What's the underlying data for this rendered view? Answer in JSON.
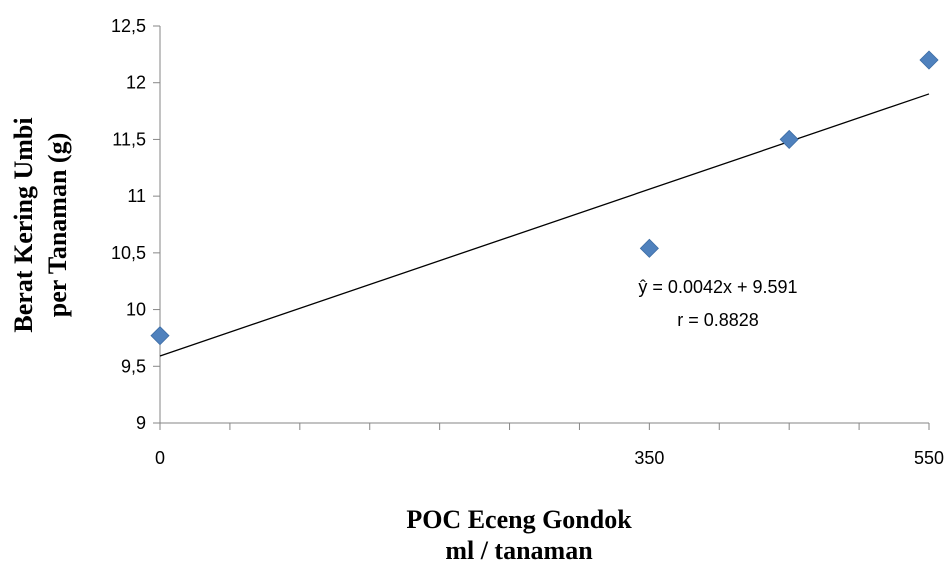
{
  "chart_data": {
    "type": "scatter",
    "xlabel": [
      "POC Eceng Gondok",
      "ml / tanaman"
    ],
    "ylabel": [
      "Berat Kering Umbi",
      "per Tanaman (g)"
    ],
    "xlim": [
      0,
      550
    ],
    "ylim": [
      9,
      12.5
    ],
    "x_tick_labels": [
      {
        "value": 0,
        "label": "0"
      },
      {
        "value": 350,
        "label": "350"
      },
      {
        "value": 550,
        "label": "550"
      }
    ],
    "x_minor_ticks": [
      50,
      100,
      150,
      200,
      250,
      300,
      400,
      450,
      500
    ],
    "y_ticks": [
      {
        "value": 9,
        "label": "9"
      },
      {
        "value": 9.5,
        "label": "9,5"
      },
      {
        "value": 10,
        "label": "10"
      },
      {
        "value": 10.5,
        "label": "10,5"
      },
      {
        "value": 11,
        "label": "11"
      },
      {
        "value": 11.5,
        "label": "11,5"
      },
      {
        "value": 12,
        "label": "12"
      },
      {
        "value": 12.5,
        "label": "12,5"
      }
    ],
    "series": [
      {
        "x": [
          0,
          350,
          450,
          550
        ],
        "y": [
          9.77,
          10.54,
          11.5,
          12.2
        ],
        "marker": "diamond",
        "color": "#4F81BD"
      }
    ],
    "trendline": {
      "slope": 0.0042,
      "intercept": 9.591,
      "x_range": [
        0,
        550
      ],
      "equation": "ŷ = 0.0042x + 9.591",
      "r_text": "r = 0.8828"
    }
  }
}
